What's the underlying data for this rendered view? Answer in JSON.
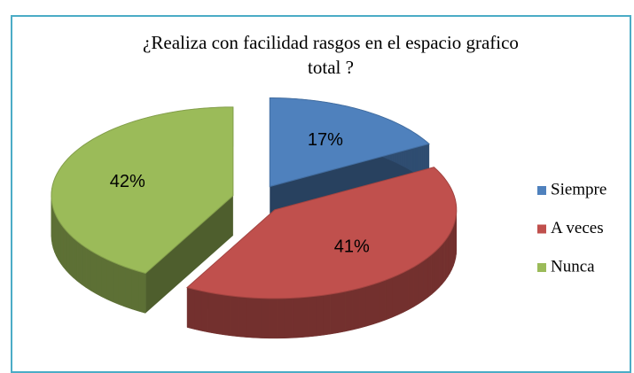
{
  "chart_data": {
    "type": "pie3d",
    "title": "¿Realiza con facilidad rasgos en el espacio grafico total  ?",
    "categories": [
      "Siempre",
      "A veces",
      "Nunca"
    ],
    "values": [
      17,
      41,
      42
    ],
    "value_labels": [
      "17%",
      "41%",
      "42%"
    ],
    "colors": [
      "#4f81bd",
      "#c0504d",
      "#9bbb59"
    ],
    "legend": "right"
  }
}
